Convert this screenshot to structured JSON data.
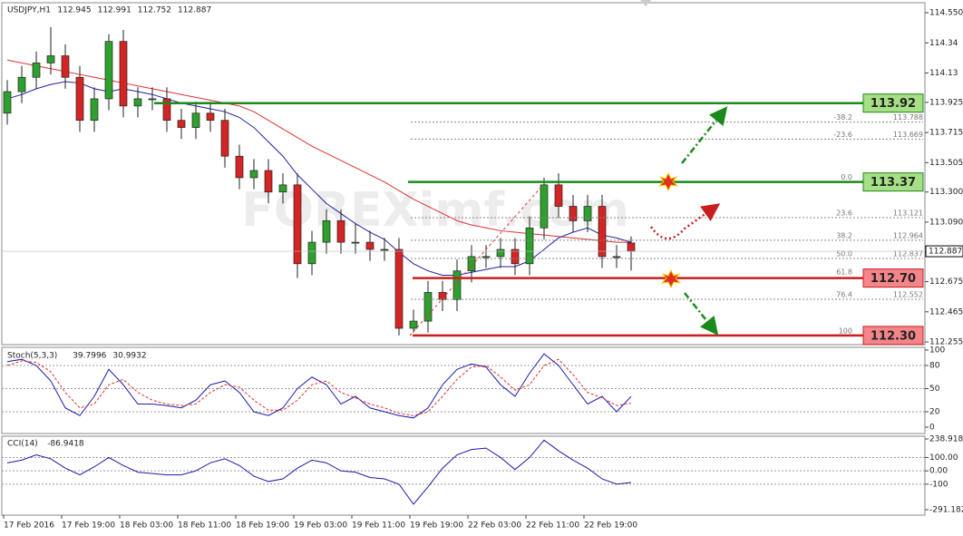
{
  "chart_data": [
    {
      "type": "candlestick",
      "title": "USDJPY,H1",
      "last_bar": [
        112.945,
        112.991,
        112.752,
        112.887
      ],
      "watermark": "FOREXimf.com",
      "categories": [
        "17 Feb 2016",
        null,
        null,
        null,
        "17 Feb 19:00",
        null,
        null,
        null,
        "18 Feb 03:00",
        null,
        null,
        null,
        "18 Feb 11:00",
        null,
        null,
        null,
        "18 Feb 19:00",
        null,
        null,
        null,
        "19 Feb 03:00",
        null,
        null,
        null,
        "19 Feb 11:00",
        null,
        null,
        null,
        "19 Feb 19:00",
        null,
        null,
        null,
        "22 Feb 03:00",
        null,
        null,
        null,
        "22 Feb 11:00",
        null,
        null,
        null,
        "22 Feb 19:00",
        null,
        null,
        null
      ],
      "open": [
        113.85,
        114.0,
        114.1,
        114.2,
        114.25,
        114.1,
        113.8,
        113.95,
        114.35,
        113.9,
        113.95,
        113.95,
        113.8,
        113.75,
        113.85,
        113.8,
        113.55,
        113.4,
        113.45,
        113.3,
        113.35,
        112.8,
        112.95,
        113.1,
        112.95,
        112.95,
        112.9,
        112.9,
        112.35,
        112.4,
        112.6,
        112.55,
        112.75,
        112.85,
        112.85,
        112.9,
        112.8,
        113.05,
        113.35,
        113.2,
        113.1,
        113.2,
        112.85,
        112.945
      ],
      "high": [
        114.08,
        114.18,
        114.28,
        114.45,
        114.33,
        114.18,
        114.03,
        114.4,
        114.43,
        114.03,
        114.03,
        114.03,
        113.88,
        113.93,
        113.93,
        113.88,
        113.63,
        113.53,
        113.53,
        113.43,
        113.43,
        113.03,
        113.18,
        113.18,
        113.08,
        113.03,
        112.98,
        112.98,
        112.48,
        112.68,
        112.68,
        112.83,
        112.93,
        112.93,
        112.98,
        112.98,
        113.13,
        113.4,
        113.43,
        113.28,
        113.28,
        113.28,
        112.93,
        112.991
      ],
      "low": [
        113.77,
        113.92,
        114.02,
        114.12,
        114.02,
        113.72,
        113.72,
        113.87,
        113.82,
        113.82,
        113.87,
        113.72,
        113.67,
        113.67,
        113.72,
        113.47,
        113.32,
        113.32,
        113.22,
        113.22,
        112.7,
        112.72,
        112.87,
        112.87,
        112.87,
        112.82,
        112.82,
        112.3,
        112.32,
        112.32,
        112.47,
        112.47,
        112.67,
        112.77,
        112.77,
        112.72,
        112.72,
        112.97,
        113.12,
        113.02,
        113.02,
        112.77,
        112.77,
        112.752
      ],
      "close": [
        114.0,
        114.1,
        114.2,
        114.25,
        114.1,
        113.8,
        113.95,
        114.35,
        113.9,
        113.95,
        113.95,
        113.8,
        113.75,
        113.85,
        113.8,
        113.55,
        113.4,
        113.45,
        113.3,
        113.35,
        112.8,
        112.95,
        113.1,
        112.95,
        112.95,
        112.9,
        112.9,
        112.35,
        112.4,
        112.6,
        112.55,
        112.75,
        112.85,
        112.85,
        112.9,
        112.8,
        113.05,
        113.35,
        113.2,
        113.1,
        113.2,
        112.85,
        112.85,
        112.887
      ],
      "up_color": "#2ea02e",
      "down_color": "#d42424",
      "moving_averages": [
        {
          "color": "#e03030",
          "values": [
            114.22,
            114.2,
            114.18,
            114.16,
            114.14,
            114.12,
            114.1,
            114.08,
            114.06,
            114.04,
            114.02,
            114.0,
            113.98,
            113.96,
            113.94,
            113.92,
            113.9,
            113.86,
            113.8,
            113.74,
            113.68,
            113.62,
            113.57,
            113.52,
            113.47,
            113.42,
            113.37,
            113.31,
            113.25,
            113.2,
            113.15,
            113.1,
            113.07,
            113.05,
            113.03,
            113.02,
            113.01,
            113.0,
            112.99,
            112.98,
            112.97,
            112.96,
            112.95,
            112.95
          ]
        },
        {
          "color": "#2020a0",
          "values": [
            113.95,
            113.98,
            114.02,
            114.05,
            114.07,
            114.06,
            114.02,
            114.0,
            114.02,
            114.0,
            113.98,
            113.95,
            113.92,
            113.9,
            113.88,
            113.86,
            113.82,
            113.75,
            113.65,
            113.55,
            113.42,
            113.32,
            113.22,
            113.15,
            113.08,
            113.02,
            112.97,
            112.88,
            112.8,
            112.75,
            112.72,
            112.72,
            112.74,
            112.76,
            112.78,
            112.78,
            112.82,
            112.9,
            112.98,
            113.02,
            113.05,
            113.0,
            112.98,
            112.95
          ]
        }
      ],
      "ylim": [
        112.236,
        114.62
      ],
      "yticks": [
        {
          "value": 114.55,
          "label": "114.550"
        },
        114.34,
        114.13,
        113.925,
        113.715,
        113.505,
        {
          "value": 113.3,
          "label": "113.300"
        },
        {
          "value": 113.09,
          "label": "113.090"
        },
        {
          "value": 112.88,
          "label": "112.880"
        },
        112.675,
        112.465,
        112.255
      ],
      "current_price": 112.887,
      "levels": [
        {
          "value": 113.92,
          "color": "#1a8a1a",
          "fill": "#a6df86"
        },
        {
          "value": 113.37,
          "color": "#1a8a1a",
          "fill": "#a6df86"
        },
        {
          "value": 112.7,
          "color": "#c81e1e",
          "fill": "#f4858a"
        },
        {
          "value": 112.3,
          "color": "#c81e1e",
          "fill": "#f4858a"
        }
      ],
      "level_labels": [
        "113.92",
        "113.37",
        "112.70",
        "112.30"
      ],
      "fib": [
        {
          "level": "-38.2",
          "price": 113.788
        },
        {
          "level": "-23.6",
          "price": 113.669
        },
        {
          "level": "0.0"
        },
        {
          "level": "23.6",
          "price": 113.121
        },
        {
          "level": "38.2",
          "price": 112.964
        },
        {
          "level": "50.0",
          "price": 112.837
        },
        {
          "level": "61.8"
        },
        {
          "level": "76.4",
          "price": 112.552
        },
        {
          "level": "100"
        }
      ]
    },
    {
      "type": "line",
      "title": "Stoch(5,3,3)",
      "last_values": [
        39.7996,
        30.9932
      ],
      "series": [
        {
          "color": "#1a1aa8",
          "dash": false,
          "values": [
            85,
            88,
            80,
            60,
            25,
            15,
            40,
            75,
            55,
            30,
            30,
            28,
            25,
            35,
            55,
            60,
            45,
            20,
            15,
            25,
            50,
            65,
            55,
            30,
            40,
            25,
            20,
            15,
            12,
            25,
            55,
            75,
            82,
            78,
            55,
            40,
            70,
            95,
            80,
            55,
            30,
            40,
            20,
            39.7996
          ]
        },
        {
          "color": "#e03030",
          "dash": true,
          "values": [
            80,
            86,
            84,
            72,
            45,
            25,
            30,
            55,
            62,
            45,
            35,
            30,
            28,
            30,
            45,
            55,
            52,
            35,
            22,
            22,
            35,
            55,
            60,
            45,
            38,
            30,
            25,
            18,
            15,
            20,
            40,
            62,
            78,
            80,
            65,
            48,
            55,
            80,
            88,
            68,
            45,
            38,
            28,
            30.9932
          ]
        }
      ],
      "ylim": [
        0,
        100
      ],
      "yticks": [
        100,
        80,
        50,
        20,
        0
      ],
      "levels": [
        80,
        50,
        20
      ]
    },
    {
      "type": "line",
      "title": "CCI(14)",
      "series": [
        {
          "color": "#1a1aa8",
          "values": [
            60,
            80,
            120,
            90,
            20,
            -30,
            30,
            100,
            40,
            -10,
            -20,
            -30,
            -30,
            0,
            60,
            90,
            40,
            -40,
            -80,
            -60,
            20,
            80,
            60,
            0,
            -10,
            -50,
            -60,
            -100,
            -250,
            -120,
            20,
            120,
            160,
            170,
            100,
            10,
            100,
            230,
            150,
            80,
            20,
            -60,
            -100,
            -86.9418
          ]
        }
      ],
      "ylim": [
        -291.1824,
        238.9186
      ],
      "yticks": [
        238.9186,
        {
          "value": 100,
          "label": "100.00"
        },
        {
          "value": 0,
          "label": "0.00"
        },
        -100,
        -291.1824
      ],
      "levels": [
        100,
        0,
        -100
      ]
    }
  ]
}
